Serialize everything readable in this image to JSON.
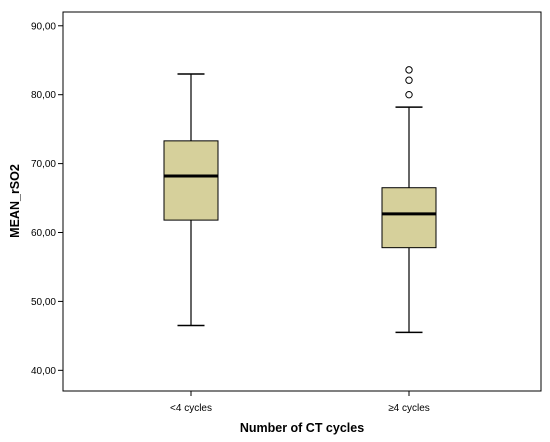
{
  "chart_data": {
    "type": "boxplot",
    "xlabel": "Number of CT cycles",
    "ylabel": "MEAN_rSO2",
    "ylim": [
      37.0,
      92.0
    ],
    "yticks": [
      40,
      50,
      60,
      70,
      80,
      90
    ],
    "ytick_labels": [
      "40,00",
      "50,00",
      "60,00",
      "70,00",
      "80,00",
      "90,00"
    ],
    "categories": [
      "<4 cycles",
      "≥4 cycles"
    ],
    "box_color": "#d6d09b",
    "boxes": [
      {
        "category": "<4 cycles",
        "whisker_low": 46.5,
        "q1": 61.8,
        "median": 68.2,
        "q3": 73.3,
        "whisker_high": 83.0,
        "outliers": []
      },
      {
        "category": "≥4 cycles",
        "whisker_low": 45.5,
        "q1": 57.8,
        "median": 62.7,
        "q3": 66.5,
        "whisker_high": 78.2,
        "outliers": [
          80.0,
          82.1,
          83.6
        ]
      }
    ],
    "grid": false,
    "legend": "none"
  }
}
